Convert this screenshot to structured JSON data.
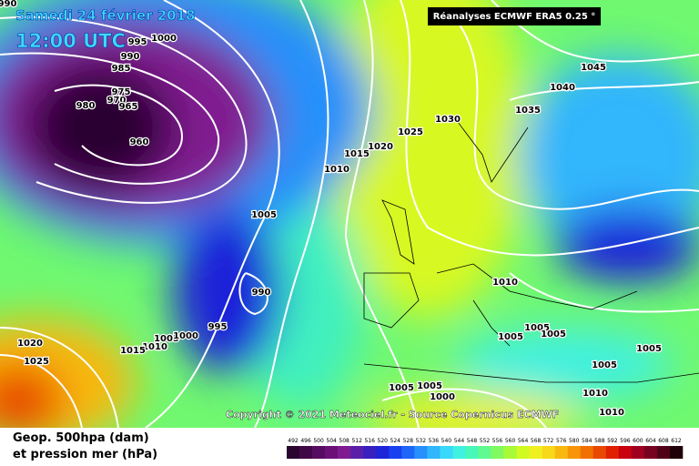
{
  "header": {
    "date": "Samedi 24 février 2018",
    "time": "12:00 UTC",
    "source": "Réanalyses ECMWF ERA5 0.25 °"
  },
  "copyright": "Copyright © 2021 Meteociel.fr - Source Copernicus ECMWF",
  "legend": {
    "line1": "Geop. 500hpa (dam)",
    "line2": "et pression mer (hPa)",
    "scale": [
      492,
      496,
      500,
      504,
      508,
      512,
      516,
      520,
      524,
      528,
      532,
      536,
      540,
      544,
      548,
      552,
      556,
      560,
      564,
      568,
      572,
      576,
      580,
      584,
      588,
      592,
      596,
      600,
      604,
      608,
      612
    ],
    "colors": [
      "#2a0530",
      "#400846",
      "#560c60",
      "#6c1078",
      "#801a90",
      "#5a1ea8",
      "#3820c0",
      "#1e24d8",
      "#1840f0",
      "#1e66f8",
      "#2890fa",
      "#30b6fc",
      "#38d8fa",
      "#40f0e0",
      "#48f8b8",
      "#60fa90",
      "#80fa60",
      "#a8fa38",
      "#d0fa20",
      "#f0f020",
      "#f8d818",
      "#f8b810",
      "#f89408",
      "#f07000",
      "#e84800",
      "#e02000",
      "#c80010",
      "#a00020",
      "#780020",
      "#500018",
      "#200008"
    ]
  },
  "isobar_labels": [
    "990",
    "1000",
    "995",
    "990",
    "985",
    "975",
    "970",
    "965",
    "980",
    "960",
    "1005",
    "1010",
    "1015",
    "1020",
    "1025",
    "1030",
    "1045",
    "1040",
    "1035",
    "990",
    "995",
    "1005",
    "1000",
    "1010",
    "1015",
    "1020",
    "1025",
    "1010",
    "1005",
    "1005",
    "1005",
    "1005",
    "1005",
    "1005",
    "1005",
    "1000",
    "1010",
    "1010"
  ]
}
